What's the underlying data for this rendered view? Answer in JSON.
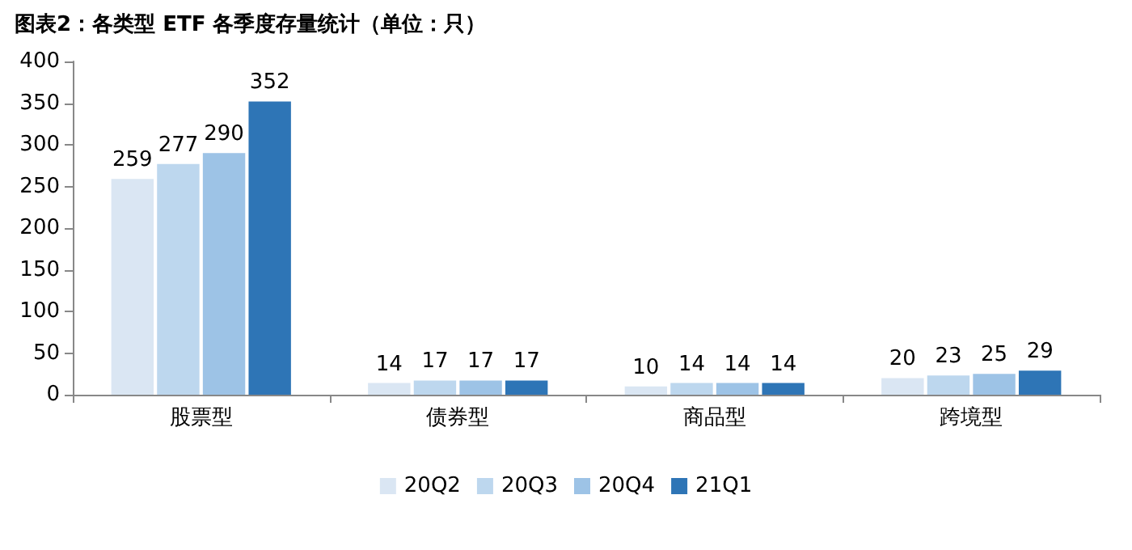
{
  "chart_data": {
    "type": "bar",
    "title": "图表2：各类型 ETF 各季度存量统计（单位：只）",
    "categories": [
      "股票型",
      "债券型",
      "商品型",
      "跨境型"
    ],
    "series": [
      {
        "name": "20Q2",
        "color": "#dae6f3",
        "values": [
          259,
          14,
          10,
          20
        ]
      },
      {
        "name": "20Q3",
        "color": "#bdd7ee",
        "values": [
          277,
          17,
          14,
          23
        ]
      },
      {
        "name": "20Q4",
        "color": "#9dc3e6",
        "values": [
          290,
          17,
          14,
          25
        ]
      },
      {
        "name": "21Q1",
        "color": "#2e75b6",
        "values": [
          352,
          17,
          14,
          29
        ]
      }
    ],
    "ylim": [
      0,
      400
    ],
    "yticks": [
      0,
      50,
      100,
      150,
      200,
      250,
      300,
      350,
      400
    ],
    "grid": false,
    "legend": "bottom",
    "data_labels": true
  }
}
